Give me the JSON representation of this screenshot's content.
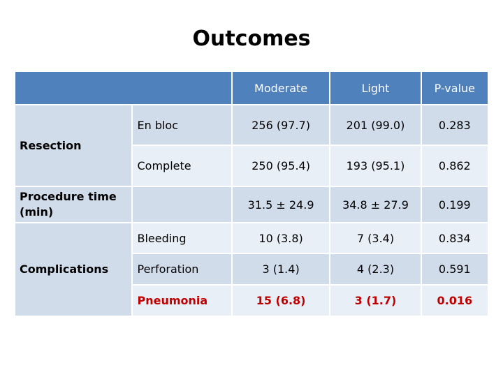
{
  "title": "Outcomes",
  "table": {
    "columns": [
      "Moderate",
      "Light",
      "P-value"
    ],
    "groups": {
      "resection": "Resection",
      "procedure_time": "Procedure time (min)",
      "complications": "Complications"
    },
    "rows": [
      {
        "label": "En bloc",
        "moderate": "256 (97.7)",
        "light": "201 (99.0)",
        "p": "0.283"
      },
      {
        "label": "Complete",
        "moderate": "250 (95.4)",
        "light": "193 (95.1)",
        "p": "0.862"
      },
      {
        "label": "",
        "moderate": "31.5 ± 24.9",
        "light": "34.8 ± 27.9",
        "p": "0.199"
      },
      {
        "label": "Bleeding",
        "moderate": "10 (3.8)",
        "light": "7 (3.4)",
        "p": "0.834"
      },
      {
        "label": "Perforation",
        "moderate": "3 (1.4)",
        "light": "4 (2.3)",
        "p": "0.591"
      },
      {
        "label": "Pneumonia",
        "moderate": "15 (6.8)",
        "light": "3 (1.7)",
        "p": "0.016"
      }
    ]
  },
  "colors": {
    "header": "#4f81bd",
    "band_dark": "#d0dcea",
    "band_light": "#e9eff6",
    "highlight": "#c00000"
  }
}
